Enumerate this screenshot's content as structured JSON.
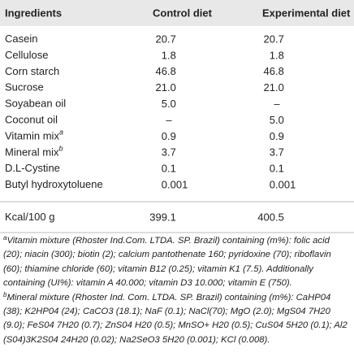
{
  "table": {
    "header": [
      "Ingredients",
      "Control diet",
      "Experimental diet"
    ],
    "rows": [
      {
        "label": "Casein",
        "control": "20.7",
        "experimental": "20.7"
      },
      {
        "label": "Cellulose",
        "control": "1.8",
        "experimental": "1.8"
      },
      {
        "label": "Corn starch",
        "control": "46.8",
        "experimental": "46.8"
      },
      {
        "label": "Sucrose",
        "control": "21.0",
        "experimental": "21.0"
      },
      {
        "label": "Soyabean oil",
        "control": "5.0",
        "experimental": "–"
      },
      {
        "label": "Coconut oil",
        "control": "–",
        "experimental": "5.0"
      },
      {
        "label": "Vitamin mix",
        "sup": "a",
        "control": "0.9",
        "experimental": "0.9"
      },
      {
        "label": "Mineral mix",
        "sup": "b",
        "control": "3.7",
        "experimental": "3.7"
      },
      {
        "label": "D.L-Cystine",
        "control": "0.1",
        "experimental": "0.1"
      },
      {
        "label": "Butyl hydroxytoluene",
        "control": "0.001",
        "experimental": "0.001"
      }
    ],
    "total": {
      "label": "Kcal/100 g",
      "control": "399.1",
      "experimental": "400.5"
    }
  },
  "footnotes": [
    {
      "mark": "a",
      "text": "Vitamin mixture (Rhoster Ind.Com. LTDA. SP. Brazil) containing (m%): folic acid (20); niacin (300); biotin (2); calcium pantothenate 160; pyridoxine (70); riboflavin (60); thiamine chloride (60); vitamin B12 (0.25); vitamin K1 (7.5). Additionally containing (UI%): vitamin A 40.000; vitamin D3 10.000; vitamin E (750)."
    },
    {
      "mark": "b",
      "text": "Mineral mixture (Rhoster Ind. Com. LTDA. SP. Brazil) containing (m%): CaHP04 (38); K2HP04 (24); CaCO3 (18.1); NaF (0.1); NaCl(70); MgO (2.0); MgS04 7H20 (9.0); FeS04 7H20 (0.7); ZnS04 H20 (0.5); MnSO+ H20 (0.5); CuS04 5H20 (0.1); Al2 (S04)3K2S04 24H20 (0.02); Na2SeO3 5H20 (0.001); KCl (0.008)."
    }
  ]
}
